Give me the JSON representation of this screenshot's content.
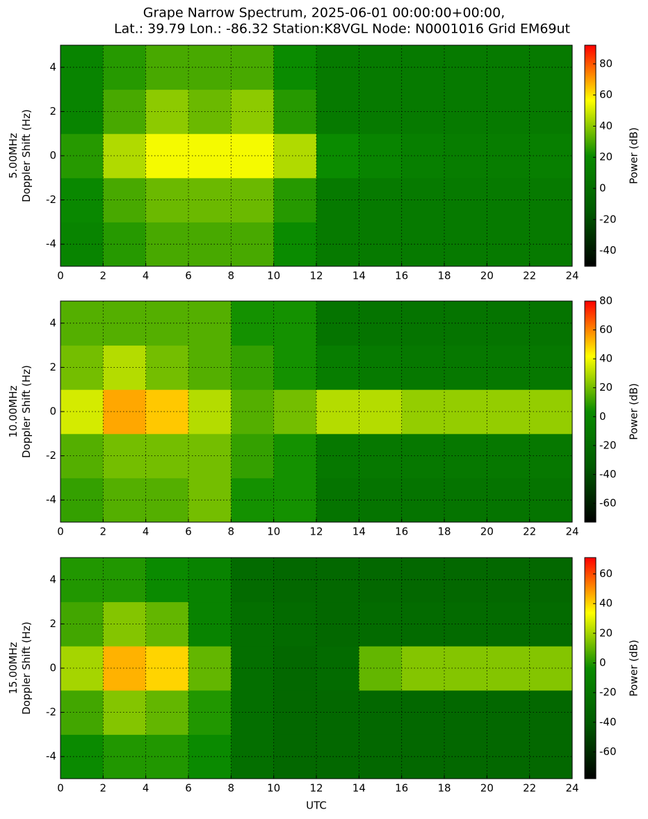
{
  "figure": {
    "title": [
      "Grape Narrow Spectrum, 2025-06-01 00:00:00+00:00,",
      "Lat.: 39.79 Lon.: -86.32 Station:K8VGL Node: N0001016 Grid EM69ut"
    ]
  },
  "chart_data": [
    {
      "type": "heatmap",
      "ylabel": [
        "5.00MHz",
        "Doppler Shift (Hz)"
      ],
      "colorbar_label": "Power (dB)",
      "xlim": [
        0,
        24
      ],
      "xticks": [
        0,
        2,
        4,
        6,
        8,
        10,
        12,
        14,
        16,
        18,
        20,
        22,
        24
      ],
      "ylim": [
        -5,
        5
      ],
      "yticks": [
        -4,
        -2,
        0,
        2,
        4
      ],
      "grid": true,
      "x_bins": [
        0,
        2,
        4,
        6,
        8,
        10,
        12,
        14,
        16,
        18,
        20,
        22,
        24
      ],
      "y_bins": [
        -5,
        -3,
        -1,
        1,
        3,
        5
      ],
      "values": [
        [
          15,
          25,
          30,
          30,
          30,
          20,
          8,
          8,
          8,
          8,
          8,
          8
        ],
        [
          18,
          30,
          35,
          35,
          35,
          25,
          8,
          8,
          8,
          8,
          8,
          8
        ],
        [
          25,
          45,
          55,
          55,
          55,
          45,
          20,
          15,
          12,
          10,
          10,
          12
        ],
        [
          15,
          30,
          40,
          35,
          40,
          25,
          8,
          8,
          8,
          8,
          8,
          8
        ],
        [
          15,
          25,
          30,
          30,
          30,
          20,
          8,
          8,
          8,
          8,
          8,
          8
        ]
      ],
      "clim": [
        -50,
        92
      ],
      "cticks": [
        -40,
        -20,
        0,
        20,
        40,
        60,
        80
      ],
      "colormap": [
        "#000000",
        "#005a00",
        "#0a8c00",
        "#ffff00",
        "#ff0000"
      ]
    },
    {
      "type": "heatmap",
      "ylabel": [
        "10.00MHz",
        "Doppler Shift (Hz)"
      ],
      "colorbar_label": "Power (dB)",
      "xlim": [
        0,
        24
      ],
      "xticks": [
        0,
        2,
        4,
        6,
        8,
        10,
        12,
        14,
        16,
        18,
        20,
        22,
        24
      ],
      "ylim": [
        -5,
        5
      ],
      "yticks": [
        -4,
        -2,
        0,
        2,
        4
      ],
      "grid": true,
      "x_bins": [
        0,
        2,
        4,
        6,
        8,
        10,
        12,
        14,
        16,
        18,
        20,
        22,
        24
      ],
      "y_bins": [
        -5,
        -3,
        -1,
        1,
        3,
        5
      ],
      "values": [
        [
          10,
          15,
          15,
          20,
          5,
          5,
          -15,
          -15,
          -15,
          -15,
          -15,
          -15
        ],
        [
          15,
          20,
          20,
          20,
          10,
          5,
          -12,
          -12,
          -12,
          -12,
          -12,
          -12
        ],
        [
          35,
          55,
          50,
          30,
          15,
          20,
          30,
          30,
          25,
          25,
          25,
          25
        ],
        [
          20,
          30,
          20,
          15,
          10,
          5,
          -8,
          -10,
          -12,
          -12,
          -12,
          -12
        ],
        [
          15,
          15,
          15,
          15,
          5,
          5,
          -15,
          -15,
          -15,
          -15,
          -15,
          -15
        ]
      ],
      "clim": [
        -73,
        80
      ],
      "cticks": [
        -60,
        -40,
        -20,
        0,
        20,
        40,
        60,
        80
      ],
      "colormap": [
        "#000000",
        "#005a00",
        "#0a8c00",
        "#ffff00",
        "#ff0000"
      ]
    },
    {
      "type": "heatmap",
      "ylabel": [
        "15.00MHz",
        "Doppler Shift (Hz)"
      ],
      "colorbar_label": "Power (dB)",
      "xlabel": "UTC",
      "xlim": [
        0,
        24
      ],
      "xticks": [
        0,
        2,
        4,
        6,
        8,
        10,
        12,
        14,
        16,
        18,
        20,
        22,
        24
      ],
      "ylim": [
        -5,
        5
      ],
      "yticks": [
        -4,
        -2,
        0,
        2,
        4
      ],
      "grid": true,
      "x_bins": [
        0,
        2,
        4,
        6,
        8,
        10,
        12,
        14,
        16,
        18,
        20,
        22,
        24
      ],
      "y_bins": [
        -5,
        -3,
        -1,
        1,
        3,
        5
      ],
      "values": [
        [
          -5,
          0,
          0,
          -5,
          -25,
          -30,
          -30,
          -30,
          -30,
          -30,
          -30,
          -30
        ],
        [
          5,
          15,
          10,
          0,
          -25,
          -30,
          -30,
          -30,
          -30,
          -30,
          -30,
          -30
        ],
        [
          20,
          45,
          40,
          10,
          -25,
          -30,
          -28,
          10,
          15,
          15,
          15,
          15
        ],
        [
          5,
          15,
          10,
          -10,
          -25,
          -28,
          -30,
          -28,
          -28,
          -28,
          -28,
          -28
        ],
        [
          0,
          0,
          -5,
          -10,
          -28,
          -30,
          -30,
          -30,
          -30,
          -30,
          -30,
          -30
        ]
      ],
      "clim": [
        -78,
        71
      ],
      "cticks": [
        -60,
        -40,
        -20,
        0,
        20,
        40,
        60
      ],
      "colormap": [
        "#000000",
        "#005a00",
        "#0a8c00",
        "#ffff00",
        "#ff0000"
      ]
    }
  ]
}
